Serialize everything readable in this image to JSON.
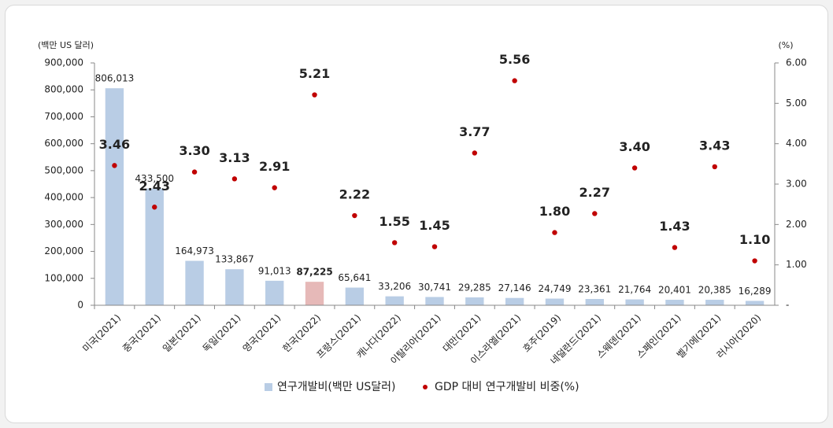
{
  "chart_data": {
    "type": "bar_dot",
    "y_label": "(백만 US 달러)",
    "y2_label": "(%)",
    "categories": [
      "미국(2021)",
      "중국(2021)",
      "일본(2021)",
      "독일(2021)",
      "영국(2021)",
      "한국(2022)",
      "프랑스(2021)",
      "캐나다(2022)",
      "이탈리아(2021)",
      "대만(2021)",
      "이스라엘(2021)",
      "호주(2019)",
      "네덜란드(2021)",
      "스웨덴(2021)",
      "스페인(2021)",
      "벨기에(2021)",
      "러시아(2020)"
    ],
    "series": [
      {
        "name": "연구개발비(백만 US달러)",
        "type": "bar",
        "color": "#b9cde5",
        "colors": [
          "#b9cde5",
          "#b9cde5",
          "#b9cde5",
          "#b9cde5",
          "#b9cde5",
          "#e6b9b8",
          "#b9cde5",
          "#b9cde5",
          "#b9cde5",
          "#b9cde5",
          "#b9cde5",
          "#b9cde5",
          "#b9cde5",
          "#b9cde5",
          "#b9cde5",
          "#b9cde5",
          "#b9cde5"
        ],
        "values": [
          806013,
          433500,
          164973,
          133867,
          91013,
          87225,
          65641,
          33206,
          30741,
          29285,
          27146,
          24749,
          23361,
          21764,
          20401,
          20385,
          16289
        ],
        "value_labels": [
          "806,013",
          "433,500",
          "164,973",
          "133,867",
          "91,013",
          "87,225",
          "65,641",
          "33,206",
          "30,741",
          "29,285",
          "27,146",
          "24,749",
          "23,361",
          "21,764",
          "20,401",
          "20,385",
          "16,289"
        ]
      },
      {
        "name": "GDP 대비 연구개발비 비중(%)",
        "type": "dot",
        "axis": "y2",
        "color": "#c00000",
        "values": [
          3.46,
          2.43,
          3.3,
          3.13,
          2.91,
          5.21,
          2.22,
          1.55,
          1.45,
          3.77,
          5.56,
          1.8,
          2.27,
          3.4,
          1.43,
          3.43,
          1.1
        ],
        "value_labels": [
          "3.46",
          "2.43",
          "3.30",
          "3.13",
          "2.91",
          "5.21",
          "2.22",
          "1.55",
          "1.45",
          "3.77",
          "5.56",
          "1.80",
          "2.27",
          "3.40",
          "1.43",
          "3.43",
          "1.10"
        ]
      }
    ],
    "ylim": [
      0,
      900000
    ],
    "yticks": [
      0,
      {
        "value": 100000,
        "label": "100,000"
      },
      {
        "value": 200000,
        "label": "200,000"
      },
      {
        "value": 300000,
        "label": "300,000"
      },
      {
        "value": 400000,
        "label": "400,000"
      },
      {
        "value": 500000,
        "label": "500,000"
      },
      {
        "value": 600000,
        "label": "600,000"
      },
      {
        "value": 700000,
        "label": "700,000"
      },
      {
        "value": 800000,
        "label": "800,000"
      },
      {
        "value": 900000,
        "label": "900,000"
      }
    ],
    "y2lim": [
      0,
      6
    ],
    "y2ticks": [
      {
        "value": 0,
        "label": "-"
      },
      {
        "value": 1,
        "label": "1.00"
      },
      {
        "value": 2,
        "label": "2.00"
      },
      {
        "value": 3,
        "label": "3.00"
      },
      {
        "value": 4,
        "label": "4.00"
      },
      {
        "value": 5,
        "label": "5.00"
      },
      {
        "value": 6,
        "label": "6.00"
      }
    ],
    "legend": "bottom"
  }
}
